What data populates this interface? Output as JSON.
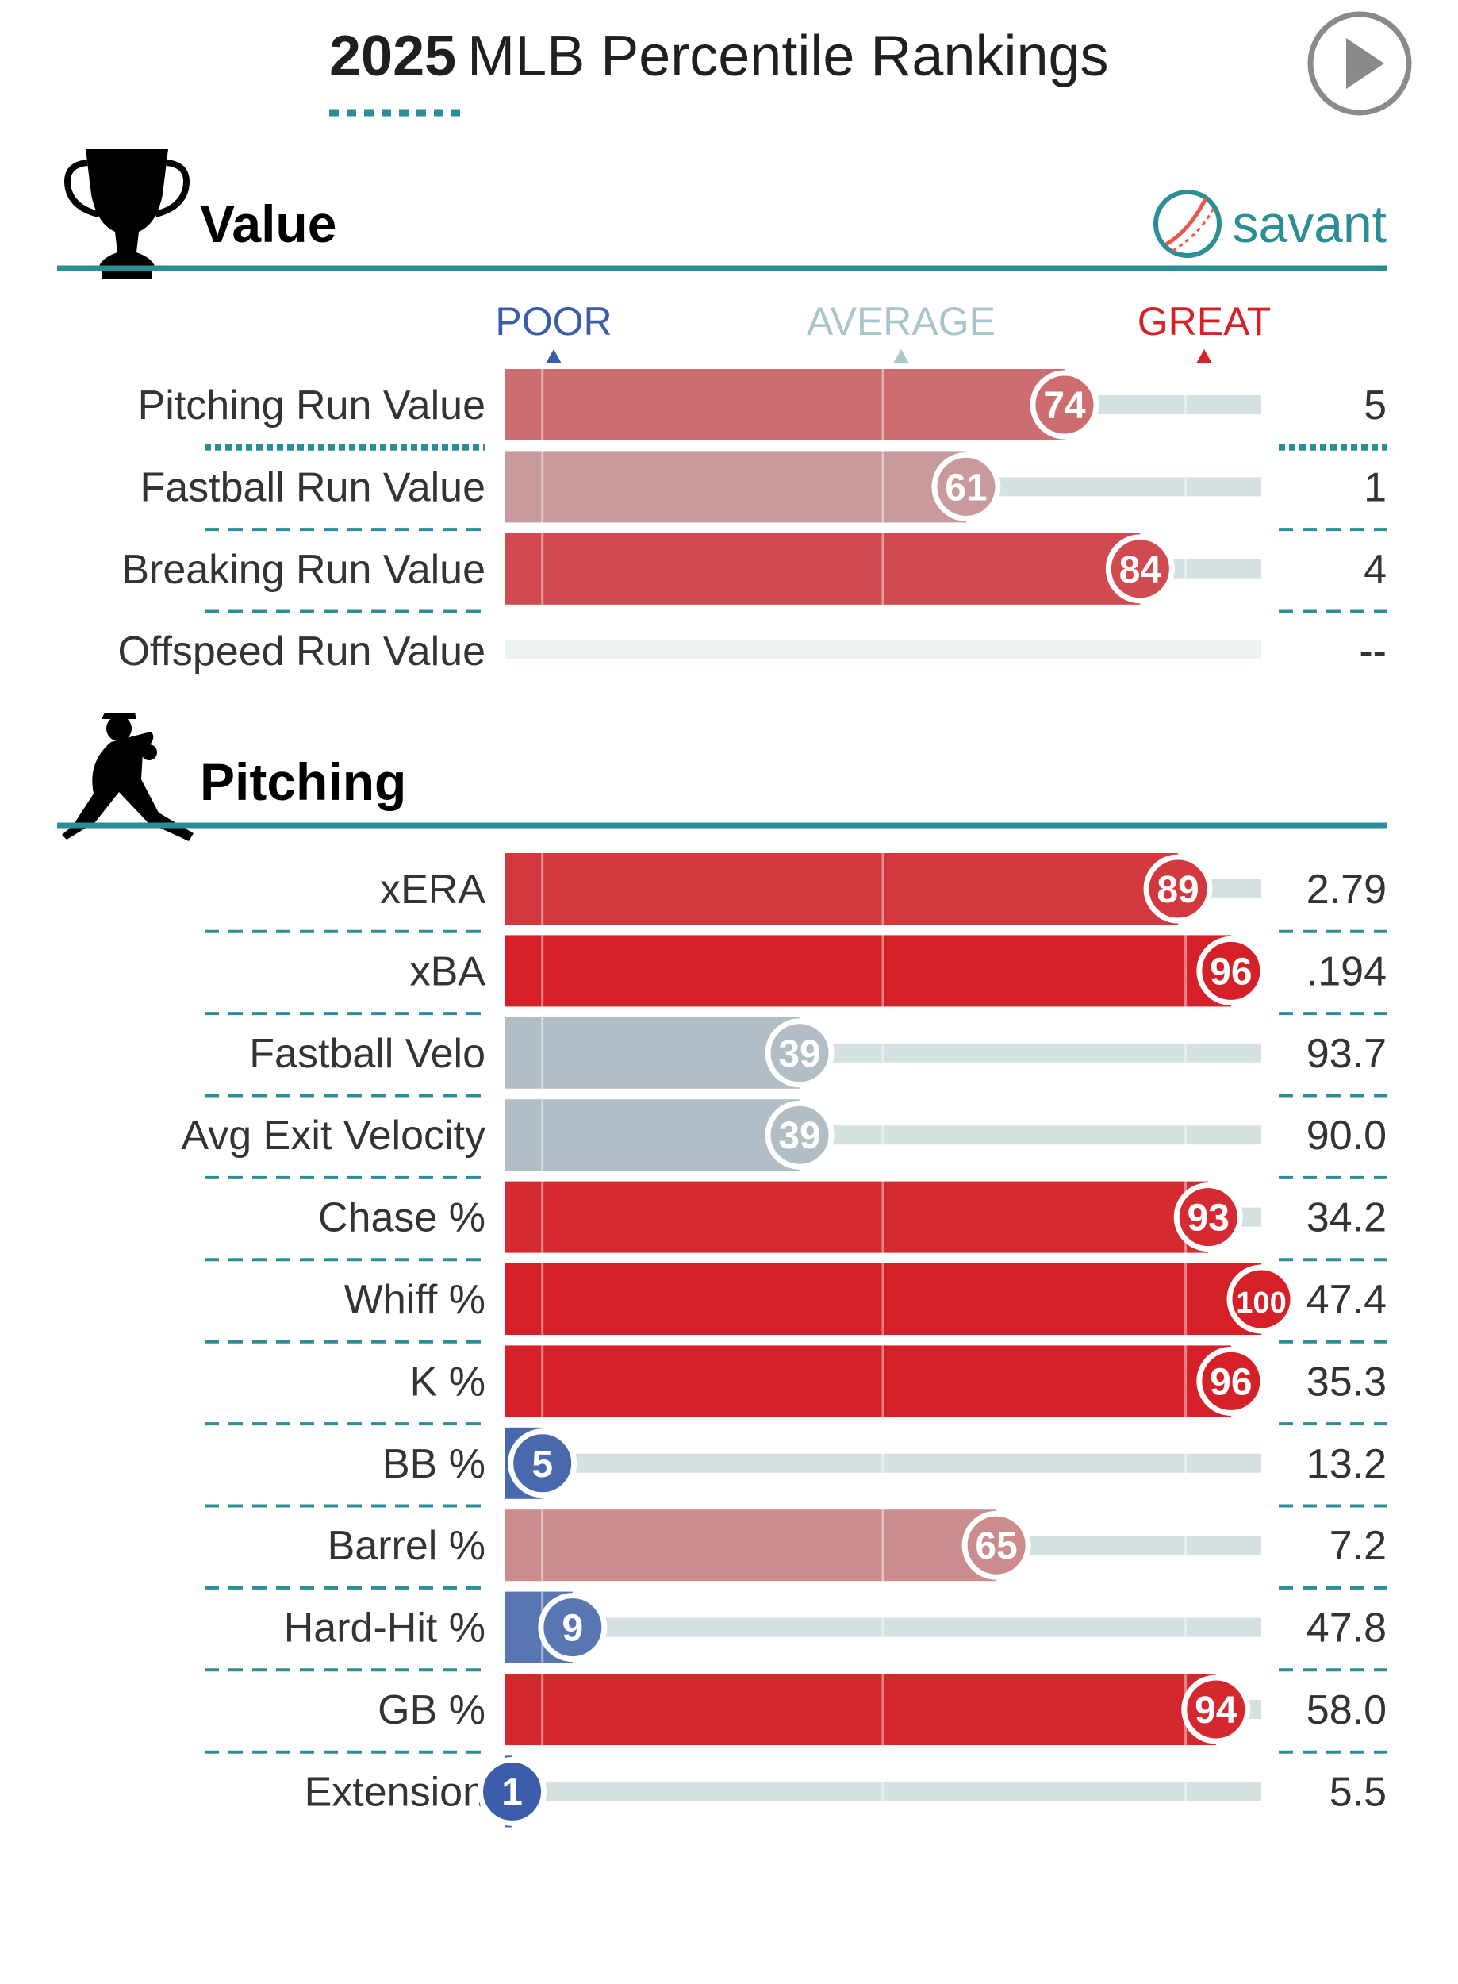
{
  "title": {
    "year": "2025",
    "rest": "MLB Percentile Rankings"
  },
  "brand": "savant",
  "scale": {
    "poor": "POOR",
    "average": "AVERAGE",
    "great": "GREAT"
  },
  "colors": {
    "accent": "#2b8d96",
    "poor": "#3b5ca8",
    "average": "#9fb8c4",
    "great": "#d62027",
    "track": "#d3e1e2"
  },
  "icons": {
    "play": "play-icon",
    "trophy": "trophy-icon",
    "pitcher": "pitcher-icon",
    "ball": "baseball-icon"
  },
  "chart_data": {
    "type": "bar",
    "xlim": [
      0,
      100
    ],
    "sections": [
      {
        "name": "Value",
        "rows": [
          {
            "label": "Pitching Run Value",
            "percentile": 74,
            "value": "5"
          },
          {
            "label": "Fastball Run Value",
            "percentile": 61,
            "value": "1"
          },
          {
            "label": "Breaking Run Value",
            "percentile": 84,
            "value": "4"
          },
          {
            "label": "Offspeed Run Value",
            "percentile": null,
            "value": "--"
          }
        ]
      },
      {
        "name": "Pitching",
        "rows": [
          {
            "label": "xERA",
            "percentile": 89,
            "value": "2.79"
          },
          {
            "label": "xBA",
            "percentile": 96,
            "value": ".194"
          },
          {
            "label": "Fastball Velo",
            "percentile": 39,
            "value": "93.7"
          },
          {
            "label": "Avg Exit Velocity",
            "percentile": 39,
            "value": "90.0"
          },
          {
            "label": "Chase %",
            "percentile": 93,
            "value": "34.2"
          },
          {
            "label": "Whiff %",
            "percentile": 100,
            "value": "47.4"
          },
          {
            "label": "K %",
            "percentile": 96,
            "value": "35.3"
          },
          {
            "label": "BB %",
            "percentile": 5,
            "value": "13.2"
          },
          {
            "label": "Barrel %",
            "percentile": 65,
            "value": "7.2"
          },
          {
            "label": "Hard-Hit %",
            "percentile": 9,
            "value": "47.8"
          },
          {
            "label": "GB %",
            "percentile": 94,
            "value": "58.0"
          },
          {
            "label": "Extension",
            "percentile": 1,
            "value": "5.5"
          }
        ]
      }
    ]
  }
}
